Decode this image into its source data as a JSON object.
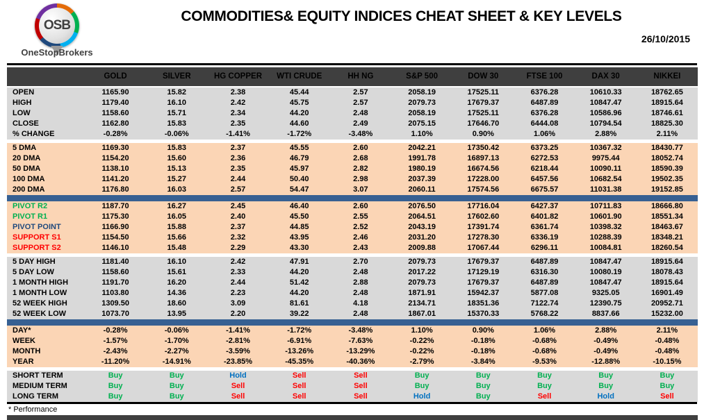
{
  "header": {
    "logo_text": "OSB",
    "logo_name": "OneStopBrokers",
    "title": "COMMODITIES& EQUITY INDICES CHEAT SHEET & KEY LEVELS",
    "date": "26/10/2015"
  },
  "colors": {
    "header_bg": "#3F3F3F",
    "gray_bg": "#D9D9D9",
    "peach_bg": "#FBD5B5",
    "divider_blue": "#376092",
    "buy": "#00B050",
    "sell": "#FF0000",
    "hold": "#0070C0",
    "resistance_label": "#00B050",
    "pivot_label": "#1F497D",
    "support_label": "#FF0000"
  },
  "table": {
    "columns": [
      "GOLD",
      "SILVER",
      "HG COPPER",
      "WTI CRUDE",
      "HH NG",
      "S&P 500",
      "DOW 30",
      "FTSE 100",
      "DAX 30",
      "NIKKEI"
    ],
    "sections": [
      {
        "id": "price",
        "bg": "gray",
        "after": "gap",
        "rows": [
          {
            "label": "OPEN",
            "values": [
              "1165.90",
              "15.82",
              "2.38",
              "45.44",
              "2.57",
              "2058.19",
              "17525.11",
              "6376.28",
              "10610.33",
              "18762.65"
            ]
          },
          {
            "label": "HIGH",
            "values": [
              "1179.40",
              "16.10",
              "2.42",
              "45.75",
              "2.57",
              "2079.73",
              "17679.37",
              "6487.89",
              "10847.47",
              "18915.64"
            ]
          },
          {
            "label": "LOW",
            "values": [
              "1158.60",
              "15.71",
              "2.34",
              "44.20",
              "2.48",
              "2058.19",
              "17525.11",
              "6376.28",
              "10586.96",
              "18746.61"
            ]
          },
          {
            "label": "CLOSE",
            "values": [
              "1162.80",
              "15.83",
              "2.35",
              "44.60",
              "2.49",
              "2075.15",
              "17646.70",
              "6444.08",
              "10794.54",
              "18825.30"
            ]
          },
          {
            "label": "% CHANGE",
            "values": [
              "-0.28%",
              "-0.06%",
              "-1.41%",
              "-1.72%",
              "-3.48%",
              "1.10%",
              "0.90%",
              "1.06%",
              "2.88%",
              "2.11%"
            ]
          }
        ]
      },
      {
        "id": "moving-averages",
        "bg": "peach",
        "after": "bar",
        "rows": [
          {
            "label": "5 DMA",
            "values": [
              "1169.30",
              "15.83",
              "2.37",
              "45.55",
              "2.60",
              "2042.21",
              "17350.42",
              "6373.25",
              "10367.32",
              "18430.77"
            ]
          },
          {
            "label": "20 DMA",
            "values": [
              "1154.20",
              "15.60",
              "2.36",
              "46.79",
              "2.68",
              "1991.78",
              "16897.13",
              "6272.53",
              "9975.44",
              "18052.74"
            ]
          },
          {
            "label": "50 DMA",
            "values": [
              "1138.10",
              "15.13",
              "2.35",
              "45.97",
              "2.82",
              "1980.19",
              "16674.56",
              "6218.44",
              "10090.11",
              "18590.39"
            ]
          },
          {
            "label": "100 DMA",
            "values": [
              "1141.20",
              "15.27",
              "2.44",
              "50.40",
              "2.98",
              "2037.39",
              "17228.00",
              "6457.56",
              "10682.54",
              "19502.35"
            ]
          },
          {
            "label": "200 DMA",
            "values": [
              "1176.80",
              "16.03",
              "2.57",
              "54.47",
              "3.07",
              "2060.11",
              "17574.56",
              "6675.57",
              "11031.38",
              "19152.85"
            ]
          }
        ]
      },
      {
        "id": "pivots",
        "bg": "peach",
        "after": "gap",
        "rows": [
          {
            "label": "PIVOT R2",
            "label_color": "#00B050",
            "values": [
              "1187.70",
              "16.27",
              "2.45",
              "46.40",
              "2.60",
              "2076.50",
              "17716.04",
              "6427.37",
              "10711.83",
              "18666.80"
            ]
          },
          {
            "label": "PIVOT R1",
            "label_color": "#00B050",
            "values": [
              "1175.30",
              "16.05",
              "2.40",
              "45.50",
              "2.55",
              "2064.51",
              "17602.60",
              "6401.82",
              "10601.90",
              "18551.34"
            ]
          },
          {
            "label": "PIVOT POINT",
            "label_color": "#1F497D",
            "values": [
              "1166.90",
              "15.88",
              "2.37",
              "44.85",
              "2.52",
              "2043.19",
              "17391.74",
              "6361.74",
              "10398.32",
              "18463.67"
            ]
          },
          {
            "label": "SUPPORT S1",
            "label_color": "#FF0000",
            "values": [
              "1154.50",
              "15.66",
              "2.32",
              "43.95",
              "2.46",
              "2031.20",
              "17278.30",
              "6336.19",
              "10288.39",
              "18348.21"
            ]
          },
          {
            "label": "SUPPORT S2",
            "label_color": "#FF0000",
            "values": [
              "1146.10",
              "15.48",
              "2.29",
              "43.30",
              "2.43",
              "2009.88",
              "17067.44",
              "6296.11",
              "10084.81",
              "18260.54"
            ]
          }
        ]
      },
      {
        "id": "ranges",
        "bg": "gray",
        "after": "bar",
        "rows": [
          {
            "label": "5 DAY HIGH",
            "values": [
              "1181.40",
              "16.10",
              "2.42",
              "47.91",
              "2.70",
              "2079.73",
              "17679.37",
              "6487.89",
              "10847.47",
              "18915.64"
            ]
          },
          {
            "label": "5 DAY LOW",
            "values": [
              "1158.60",
              "15.61",
              "2.33",
              "44.20",
              "2.48",
              "2017.22",
              "17129.19",
              "6316.30",
              "10080.19",
              "18078.43"
            ]
          },
          {
            "label": "1 MONTH HIGH",
            "values": [
              "1191.70",
              "16.20",
              "2.44",
              "51.42",
              "2.88",
              "2079.73",
              "17679.37",
              "6487.89",
              "10847.47",
              "18915.64"
            ]
          },
          {
            "label": "1 MONTH LOW",
            "values": [
              "1103.80",
              "14.36",
              "2.23",
              "44.20",
              "2.48",
              "1871.91",
              "15942.37",
              "5877.08",
              "9325.05",
              "16901.49"
            ]
          },
          {
            "label": "52 WEEK HIGH",
            "values": [
              "1309.50",
              "18.60",
              "3.09",
              "81.61",
              "4.18",
              "2134.71",
              "18351.36",
              "7122.74",
              "12390.75",
              "20952.71"
            ]
          },
          {
            "label": "52 WEEK LOW",
            "values": [
              "1073.70",
              "13.95",
              "2.20",
              "39.22",
              "2.48",
              "1867.01",
              "15370.33",
              "5768.22",
              "8837.66",
              "15232.00"
            ]
          }
        ]
      },
      {
        "id": "performance",
        "bg": "peach",
        "after": "gap",
        "rows": [
          {
            "label": "DAY*",
            "values": [
              "-0.28%",
              "-0.06%",
              "-1.41%",
              "-1.72%",
              "-3.48%",
              "1.10%",
              "0.90%",
              "1.06%",
              "2.88%",
              "2.11%"
            ]
          },
          {
            "label": "WEEK",
            "values": [
              "-1.57%",
              "-1.70%",
              "-2.81%",
              "-6.91%",
              "-7.63%",
              "-0.22%",
              "-0.18%",
              "-0.68%",
              "-0.49%",
              "-0.48%"
            ]
          },
          {
            "label": "MONTH",
            "values": [
              "-2.43%",
              "-2.27%",
              "-3.59%",
              "-13.26%",
              "-13.29%",
              "-0.22%",
              "-0.18%",
              "-0.68%",
              "-0.49%",
              "-0.48%"
            ]
          },
          {
            "label": "YEAR",
            "values": [
              "-11.20%",
              "-14.91%",
              "-23.85%",
              "-45.35%",
              "-40.36%",
              "-2.79%",
              "-3.84%",
              "-9.53%",
              "-12.88%",
              "-10.15%"
            ]
          }
        ]
      },
      {
        "id": "signals",
        "bg": "gray",
        "signal": true,
        "after": "none",
        "rows": [
          {
            "label": "SHORT TERM",
            "values": [
              "Buy",
              "Buy",
              "Hold",
              "Sell",
              "Sell",
              "Buy",
              "Buy",
              "Buy",
              "Buy",
              "Buy"
            ]
          },
          {
            "label": "MEDIUM TERM",
            "values": [
              "Buy",
              "Buy",
              "Sell",
              "Sell",
              "Sell",
              "Buy",
              "Buy",
              "Buy",
              "Buy",
              "Buy"
            ]
          },
          {
            "label": "LONG TERM",
            "values": [
              "Buy",
              "Buy",
              "Sell",
              "Sell",
              "Sell",
              "Hold",
              "Buy",
              "Sell",
              "Hold",
              "Sell"
            ]
          }
        ]
      }
    ]
  },
  "footer": {
    "note": "* Performance"
  }
}
